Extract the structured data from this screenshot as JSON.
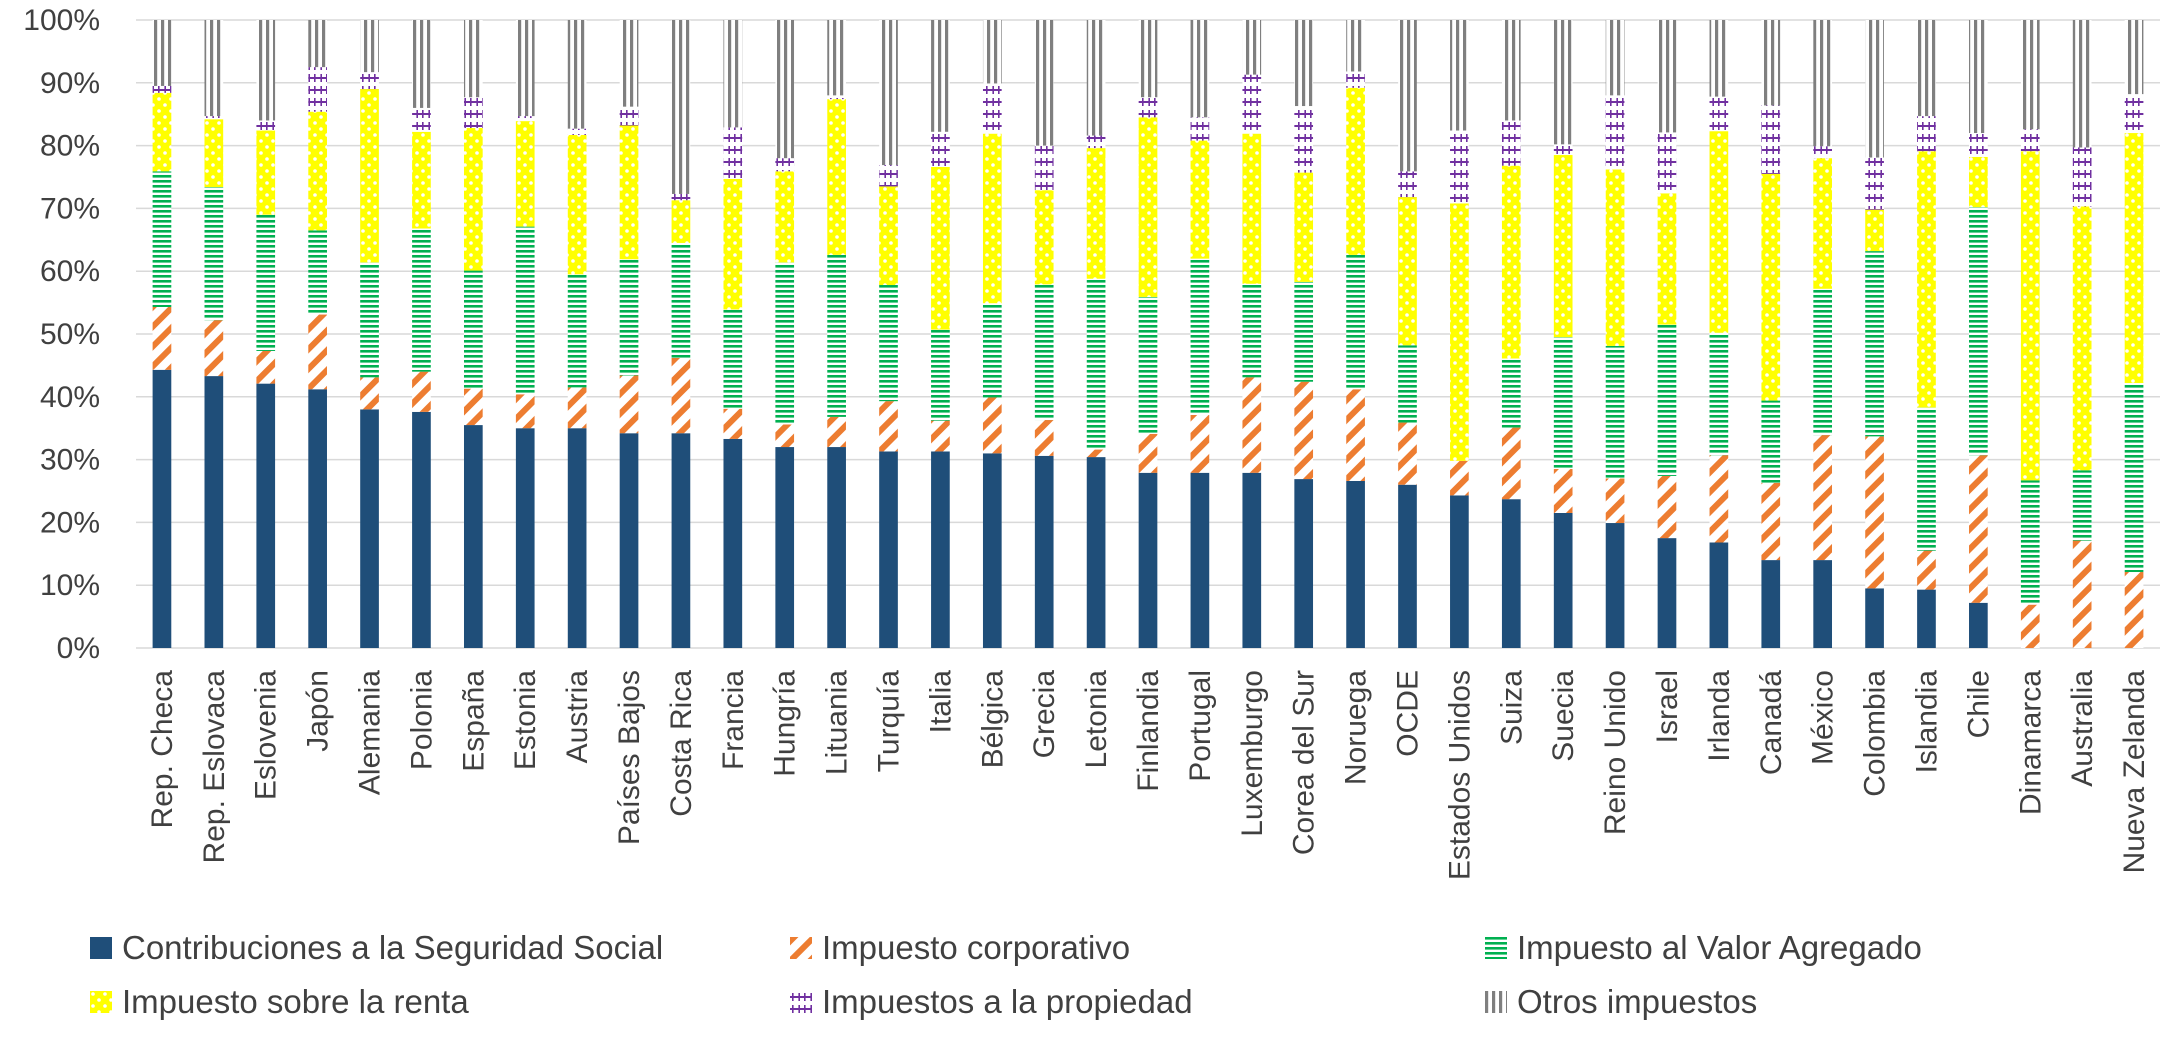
{
  "chart_data": {
    "type": "bar",
    "stacked": true,
    "normalized": true,
    "title": "",
    "xlabel": "",
    "ylabel": "",
    "ylim": [
      0,
      100
    ],
    "y_ticks": [
      "0%",
      "10%",
      "20%",
      "30%",
      "40%",
      "50%",
      "60%",
      "70%",
      "80%",
      "90%",
      "100%"
    ],
    "grid": true,
    "legend_position": "bottom",
    "categories": [
      "Rep. Checa",
      "Rep. Eslovaca",
      "Eslovenia",
      "Japón",
      "Alemania",
      "Polonia",
      "España",
      "Estonia",
      "Austria",
      "Países Bajos",
      "Costa Rica",
      "Francia",
      "Hungría",
      "Lituania",
      "Turquía",
      "Italia",
      "Bélgica",
      "Grecia",
      "Letonia",
      "Finlandia",
      "Portugal",
      "Luxemburgo",
      "Corea del Sur",
      "Noruega",
      "OCDE",
      "Estados Unidos",
      "Suiza",
      "Suecia",
      "Reino Unido",
      "Israel",
      "Irlanda",
      "Canadá",
      "México",
      "Colombia",
      "Islandia",
      "Chile",
      "Dinamarca",
      "Australia",
      "Nueva Zelanda"
    ],
    "series": [
      {
        "name": "Contribuciones a la Seguridad Social",
        "color": "#1f4e79",
        "pattern": "solid",
        "values": [
          44.3,
          43.3,
          42.1,
          41.2,
          38.0,
          37.6,
          35.5,
          35.0,
          35.0,
          34.2,
          34.2,
          33.3,
          32.0,
          32.0,
          31.3,
          31.3,
          31.0,
          30.6,
          30.4,
          27.9,
          27.9,
          27.9,
          26.9,
          26.6,
          26.0,
          24.3,
          23.7,
          21.5,
          19.9,
          17.5,
          16.8,
          14.0,
          14.0,
          9.5,
          9.3,
          7.2,
          0.0,
          0.0,
          0.0
        ]
      },
      {
        "name": "Impuesto corporativo",
        "color": "#ed7d31",
        "pattern": "diagonal",
        "values": [
          10.0,
          8.9,
          5.2,
          11.9,
          5.1,
          6.4,
          5.8,
          5.4,
          6.5,
          9.2,
          12.0,
          4.8,
          3.6,
          4.8,
          8.0,
          4.9,
          8.9,
          5.7,
          1.2,
          6.2,
          9.2,
          15.2,
          15.5,
          14.6,
          9.9,
          5.5,
          11.4,
          7.0,
          7.1,
          9.9,
          13.9,
          12.3,
          19.9,
          24.2,
          6.2,
          23.5,
          6.9,
          17.1,
          12.1
        ]
      },
      {
        "name": "Impuesto al Valor Agregado",
        "color": "#00b050",
        "pattern": "horizontal",
        "values": [
          21.6,
          21.2,
          21.7,
          13.4,
          18.3,
          22.8,
          18.8,
          26.7,
          18.0,
          18.5,
          18.3,
          15.8,
          25.8,
          25.8,
          18.5,
          14.5,
          15.0,
          21.6,
          27.2,
          21.8,
          24.9,
          14.9,
          15.9,
          21.4,
          12.3,
          0.0,
          11.0,
          21.0,
          21.1,
          24.1,
          19.5,
          13.1,
          23.3,
          29.5,
          22.8,
          39.5,
          19.8,
          11.2,
          30.1
        ]
      },
      {
        "name": "Impuesto sobre la renta",
        "color": "#ffff00",
        "pattern": "dots",
        "values": [
          12.5,
          10.8,
          13.4,
          18.9,
          27.6,
          15.4,
          22.7,
          16.8,
          22.2,
          21.3,
          6.8,
          20.8,
          14.5,
          24.8,
          15.7,
          25.9,
          27.0,
          15.0,
          20.8,
          28.6,
          18.8,
          23.9,
          17.4,
          26.6,
          23.6,
          41.0,
          30.7,
          29.0,
          28.1,
          20.9,
          32.1,
          36.1,
          20.8,
          6.6,
          40.8,
          8.0,
          52.4,
          42.0,
          39.8
        ]
      },
      {
        "name": "Impuestos a la propiedad",
        "color": "#7030a0",
        "pattern": "cross",
        "values": [
          1.1,
          0.5,
          1.6,
          7.1,
          2.7,
          3.8,
          4.9,
          0.8,
          1.0,
          3.0,
          1.0,
          8.2,
          2.1,
          0.6,
          3.4,
          5.6,
          8.0,
          7.1,
          2.0,
          3.2,
          3.7,
          9.4,
          10.6,
          2.6,
          4.1,
          11.6,
          7.2,
          1.7,
          11.8,
          9.7,
          5.5,
          10.9,
          1.9,
          8.3,
          5.6,
          3.8,
          3.5,
          9.4,
          6.2
        ]
      },
      {
        "name": "Otros impuestos",
        "color": "#7f7f7f",
        "pattern": "vertical",
        "values": [
          10.5,
          15.3,
          16.0,
          7.5,
          8.3,
          14.0,
          12.3,
          15.3,
          17.3,
          13.8,
          27.7,
          17.1,
          22.0,
          12.0,
          23.1,
          17.8,
          10.1,
          20.0,
          18.4,
          12.3,
          15.5,
          8.7,
          13.7,
          8.2,
          24.1,
          17.6,
          16.0,
          19.8,
          12.0,
          17.9,
          12.2,
          13.6,
          20.1,
          21.9,
          15.3,
          18.0,
          17.4,
          20.3,
          11.8
        ]
      }
    ]
  }
}
